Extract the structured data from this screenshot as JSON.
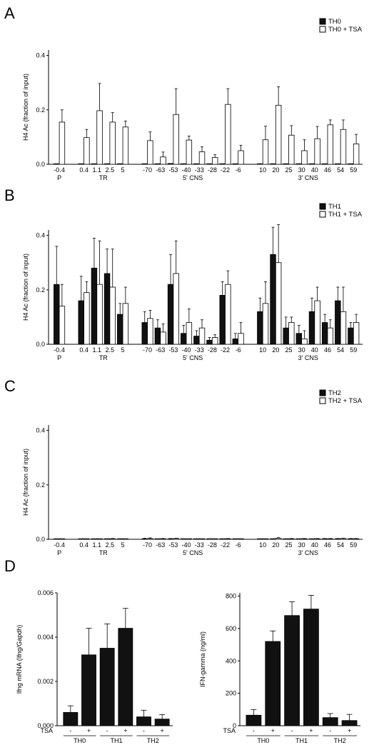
{
  "chart_data": [
    {
      "type": "bar",
      "panel": "A",
      "ylabel": "H4 Ac (fraction of input)",
      "ylim": [
        0,
        0.42
      ],
      "yticks": [
        "0.0",
        "0.2",
        "0.4"
      ],
      "tick_values": [
        0,
        0.2,
        0.4
      ],
      "categories": [
        "-0.4",
        "0.4",
        "1.1",
        "2.5",
        "5",
        "-70",
        "-63",
        "-53",
        "-40",
        "-33",
        "-28",
        "-22",
        "-6",
        "10",
        "20",
        "25",
        "30",
        "40",
        "46",
        "54",
        "59"
      ],
      "groups": [
        {
          "label": "P",
          "count": 1
        },
        {
          "label": "TR",
          "count": 4
        },
        {
          "label": "5' CNS",
          "count": 8
        },
        {
          "label": "3' CNS",
          "count": 8
        }
      ],
      "series": [
        {
          "name": "TH0",
          "fill": "#111111",
          "values": [
            0.002,
            0.002,
            0.002,
            0.002,
            0.002,
            0.002,
            0.002,
            0.003,
            0.002,
            0.002,
            0.002,
            0.002,
            0.002,
            0.002,
            0.002,
            0.002,
            0.002,
            0.002,
            0.002,
            0.002,
            0.002
          ],
          "errors": [
            0,
            0,
            0,
            0,
            0,
            0,
            0,
            0,
            0,
            0,
            0,
            0,
            0,
            0,
            0,
            0,
            0,
            0,
            0,
            0,
            0
          ]
        },
        {
          "name": "TH0 + TSA",
          "fill": "#ffffff",
          "values": [
            0.155,
            0.098,
            0.197,
            0.155,
            0.137,
            0.087,
            0.027,
            0.183,
            0.089,
            0.046,
            0.025,
            0.22,
            0.05,
            0.09,
            0.217,
            0.107,
            0.05,
            0.094,
            0.145,
            0.128,
            0.075
          ],
          "errors": [
            0.045,
            0.03,
            0.1,
            0.035,
            0.022,
            0.032,
            0.018,
            0.095,
            0.015,
            0.018,
            0.01,
            0.058,
            0.02,
            0.05,
            0.068,
            0.035,
            0.04,
            0.045,
            0.018,
            0.035,
            0.035
          ]
        }
      ]
    },
    {
      "type": "bar",
      "panel": "B",
      "ylabel": "H4 Ac (fraction of input)",
      "ylim": [
        0,
        0.42
      ],
      "yticks": [
        "0.0",
        "0.2",
        "0.4"
      ],
      "tick_values": [
        0,
        0.2,
        0.4
      ],
      "categories": [
        "-0.4",
        "0.4",
        "1.1",
        "2.5",
        "5",
        "-70",
        "-63",
        "-53",
        "-40",
        "-33",
        "-28",
        "-22",
        "-6",
        "10",
        "20",
        "25",
        "30",
        "40",
        "46",
        "54",
        "59"
      ],
      "groups": [
        {
          "label": "P",
          "count": 1
        },
        {
          "label": "TR",
          "count": 4
        },
        {
          "label": "5' CNS",
          "count": 8
        },
        {
          "label": "3' CNS",
          "count": 8
        }
      ],
      "series": [
        {
          "name": "TH1",
          "fill": "#111111",
          "values": [
            0.22,
            0.16,
            0.28,
            0.26,
            0.11,
            0.08,
            0.06,
            0.22,
            0.04,
            0.03,
            0.015,
            0.18,
            0.02,
            0.12,
            0.33,
            0.06,
            0.04,
            0.12,
            0.08,
            0.16,
            0.06
          ],
          "errors": [
            0.14,
            0.09,
            0.11,
            0.09,
            0.04,
            0.04,
            0.03,
            0.11,
            0.03,
            0.02,
            0.01,
            0.05,
            0.02,
            0.05,
            0.1,
            0.04,
            0.03,
            0.05,
            0.03,
            0.05,
            0.02
          ]
        },
        {
          "name": "TH1 + TSA",
          "fill": "#ffffff",
          "values": [
            0.14,
            0.19,
            0.22,
            0.21,
            0.15,
            0.095,
            0.045,
            0.26,
            0.08,
            0.06,
            0.025,
            0.22,
            0.04,
            0.15,
            0.3,
            0.08,
            0.02,
            0.16,
            0.06,
            0.12,
            0.08
          ],
          "errors": [
            0.08,
            0.04,
            0.16,
            0.14,
            0.06,
            0.03,
            0.03,
            0.12,
            0.05,
            0.03,
            0.01,
            0.05,
            0.04,
            0.08,
            0.14,
            0.02,
            0.03,
            0.05,
            0.03,
            0.09,
            0.03
          ]
        }
      ]
    },
    {
      "type": "bar",
      "panel": "C",
      "ylabel": "H4 Ac (fraction of input)",
      "ylim": [
        0,
        0.42
      ],
      "yticks": [
        "0.0",
        "0.2",
        "0.4"
      ],
      "tick_values": [
        0,
        0.2,
        0.4
      ],
      "categories": [
        "-0.4",
        "0.4",
        "1.1",
        "2.5",
        "5",
        "-70",
        "-63",
        "-53",
        "-40",
        "-33",
        "-28",
        "-22",
        "-6",
        "10",
        "20",
        "25",
        "30",
        "40",
        "46",
        "54",
        "59"
      ],
      "groups": [
        {
          "label": "P",
          "count": 1
        },
        {
          "label": "TR",
          "count": 4
        },
        {
          "label": "5' CNS",
          "count": 8
        },
        {
          "label": "3' CNS",
          "count": 8
        }
      ],
      "series": [
        {
          "name": "TH2",
          "fill": "#111111",
          "values": [
            0.002,
            0.001,
            0.001,
            0.001,
            0.001,
            0.002,
            0.001,
            0.002,
            0.001,
            0.001,
            0.001,
            0.001,
            0.001,
            0.001,
            0.001,
            0.001,
            0.001,
            0.001,
            0.002,
            0.002,
            0.002
          ],
          "errors": [
            0,
            0,
            0,
            0,
            0,
            0.002,
            0,
            0.001,
            0,
            0,
            0,
            0,
            0,
            0,
            0.001,
            0,
            0,
            0,
            0.001,
            0.001,
            0.001
          ]
        },
        {
          "name": "TH2 + TSA",
          "fill": "#ffffff",
          "values": [
            0.002,
            0.001,
            0.001,
            0.002,
            0.001,
            0.003,
            0.002,
            0.003,
            0.001,
            0.001,
            0.001,
            0.002,
            0.001,
            0.001,
            0.004,
            0.002,
            0.002,
            0.002,
            0.002,
            0.003,
            0.002
          ],
          "errors": [
            0,
            0,
            0,
            0.001,
            0,
            0.002,
            0.001,
            0.001,
            0,
            0,
            0,
            0.001,
            0,
            0,
            0.002,
            0.001,
            0.001,
            0.001,
            0.001,
            0.001,
            0.001
          ]
        }
      ]
    },
    {
      "type": "bar",
      "panel": "D",
      "ylabel": "Ifng mRNA (Ifng/Gapdh)",
      "ylim": [
        0,
        0.006
      ],
      "yticks": [
        "0.000",
        "0.002",
        "0.004",
        "0.006"
      ],
      "tick_values": [
        0,
        0.002,
        0.004,
        0.006
      ],
      "tsa_label": "TSA",
      "categories": [
        "-",
        "+",
        "-",
        "+",
        "-",
        "+"
      ],
      "groups": [
        "TH0",
        "TH1",
        "TH2"
      ],
      "values": [
        0.0006,
        0.0032,
        0.0035,
        0.0044,
        0.0004,
        0.0003
      ],
      "errors": [
        0.0003,
        0.0012,
        0.0011,
        0.0009,
        0.0003,
        0.0002
      ]
    },
    {
      "type": "bar",
      "ylabel": "IFN-gamma (ng/ml)",
      "ylim": [
        0,
        820
      ],
      "yticks": [
        "0",
        "200",
        "400",
        "600",
        "800"
      ],
      "tick_values": [
        0,
        200,
        400,
        600,
        800
      ],
      "tsa_label": "TSA",
      "categories": [
        "-",
        "+",
        "-",
        "+",
        "-",
        "+"
      ],
      "groups": [
        "TH0",
        "TH1",
        "TH2"
      ],
      "values": [
        65,
        520,
        680,
        720,
        50,
        32
      ],
      "errors": [
        35,
        65,
        85,
        85,
        25,
        38
      ]
    }
  ]
}
